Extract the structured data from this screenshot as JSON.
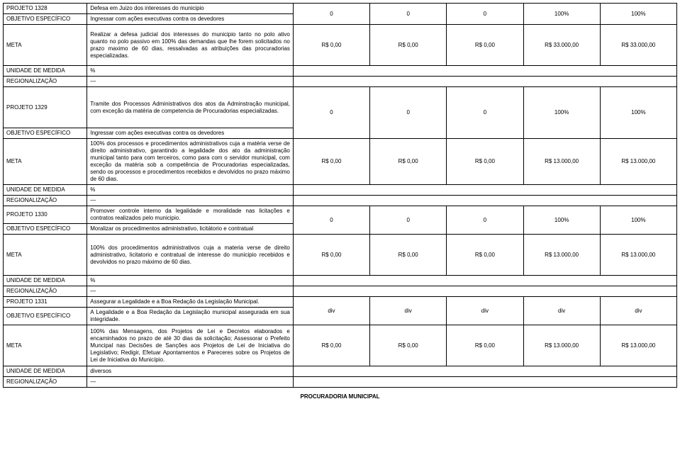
{
  "rows": [
    {
      "label": "PROJETO 1328",
      "desc": "Defesa em Juizo dos interesses do municipio",
      "v": [
        "0",
        "0",
        "0",
        "100%",
        "100%"
      ],
      "rowspan": 2
    },
    {
      "label": "OBJETIVO ESPECÍFICO",
      "desc": "Ingressar com ações executivas contra os devedores"
    },
    {
      "label": "META",
      "desc": "Realizar a defesa judicial dos interesses do municipio tanto no polo ativo quanto no polo passivo em 100% das demandas que lhe forem solicitados no prazo maximo de 60 dias, ressalvadas as atribuições das procuradorias especializadas.",
      "v": [
        "R$ 0,00",
        "R$ 0,00",
        "R$ 0,00",
        "R$ 33.000,00",
        "R$ 33.000,00"
      ],
      "cls": "tall"
    },
    {
      "label": "UNIDADE DE MEDIDA",
      "desc": "%",
      "blank": true
    },
    {
      "label": "REGIONALIZAÇÃO",
      "desc": "—",
      "blank": true,
      "dash": true
    },
    {
      "label": "PROJETO 1329",
      "desc": "Tramite dos Processos Administrativos dos atos da Adminstração municipal, com exceção da matéria de competencia de Procuradorias especializadas.",
      "v": [
        "0",
        "0",
        "0",
        "100%",
        "100%"
      ],
      "rowspan": 2,
      "cls": "tall"
    },
    {
      "label": "OBJETIVO ESPECÍFICO",
      "desc": "Ingressar com ações executivas contra os devedores"
    },
    {
      "label": "META",
      "desc": "100% dos processos e procedimentos administrativos cuja a matéria verse de direito administrativo, garantindo a legalidade dos ato da administração municipal tanto para com terceiros, como para com o servidor municipal, com exceção da matéria sob a competência de Procuradorias especializadas, sendo os processos e procedimentos recebidos e devolvidos no prazo máximo de 60 dias.",
      "v": [
        "R$ 0,00",
        "R$ 0,00",
        "R$ 0,00",
        "R$ 13.000,00",
        "R$ 13.000,00"
      ],
      "cls": "tall"
    },
    {
      "label": "UNIDADE DE MEDIDA",
      "desc": "%",
      "blank": true
    },
    {
      "label": "REGIONALIZAÇÃO",
      "desc": "—",
      "blank": true,
      "dash": true
    },
    {
      "label": "PROJETO 1330",
      "desc": "Promover controle interno da legalidade e moralidade nas licitações e contratos realizados pelo municipio.",
      "v": [
        "0",
        "0",
        "0",
        "100%",
        "100%"
      ],
      "rowspan": 2
    },
    {
      "label": "OBJETIVO ESPECÍFICO",
      "desc": "Moralizar os procedimentos administrativo, licitátorio e contratual"
    },
    {
      "label": "META",
      "desc": "100% dos procedimentos administrativos cuja a materia verse de direito administrativo, licitatorio e contratual de interesse do municipio recebidos e devolvidos no prazo máximo de 60 dias.",
      "v": [
        "R$ 0,00",
        "R$ 0,00",
        "R$ 0,00",
        "R$ 13.000,00",
        "R$ 13.000,00"
      ],
      "cls": "tall"
    },
    {
      "label": "UNIDADE DE MEDIDA",
      "desc": "%",
      "blank": true
    },
    {
      "label": "REGIONALIZAÇÃO",
      "desc": "—",
      "blank": true,
      "dash": true
    },
    {
      "label": "PROJETO 1331",
      "desc": "Assegurar a Legalidade e a Boa Redação da Legislação Municipal.",
      "v": [
        "div",
        "div",
        "div",
        "div",
        "div"
      ],
      "rowspan": 2
    },
    {
      "label": "OBJETIVO ESPECÍFICO",
      "desc": "A Legalidade e a Boa Redação da Legislação municipal assegurada em sua integridade."
    },
    {
      "label": "META",
      "desc": "100% das Mensagens, dos Projetos de Lei e Decretos elaborados e encaminhados no prazo de até 30 dias da solicitação; Assessorar o Prefeito Muncipal nas Decisões de Sanções aos Projetos de Lei de Iniciativa do Legislativo; Redigir, Efetuar Apontamentos e Pareceres sobre os Projetos de Lei de Iniciativa do Município.",
      "v": [
        "R$ 0,00",
        "R$ 0,00",
        "R$ 0,00",
        "R$ 13.000,00",
        "R$ 13.000,00"
      ],
      "cls": "tall"
    },
    {
      "label": "UNIDADE DE MEDIDA",
      "desc": "diversos",
      "blank": true
    },
    {
      "label": "REGIONALIZAÇÃO",
      "desc": "—",
      "blank": true,
      "dash": true
    }
  ],
  "footer": "PROCURADORIA MUNICIPAL"
}
